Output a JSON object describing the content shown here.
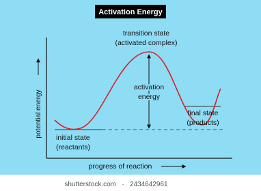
{
  "title": "Activation Energy",
  "transition_state": [
    "transition state",
    "(activated complex)"
  ],
  "activation_energy": [
    "activation",
    "energy"
  ],
  "final_state": [
    "final state",
    "(products)"
  ],
  "initial_state": [
    "initial state",
    "(reactants)"
  ],
  "y_axis_label": "potential energy",
  "x_axis_label": "progress of reaction",
  "watermark": [
    "shutterstock.com",
    "2434642961"
  ]
}
